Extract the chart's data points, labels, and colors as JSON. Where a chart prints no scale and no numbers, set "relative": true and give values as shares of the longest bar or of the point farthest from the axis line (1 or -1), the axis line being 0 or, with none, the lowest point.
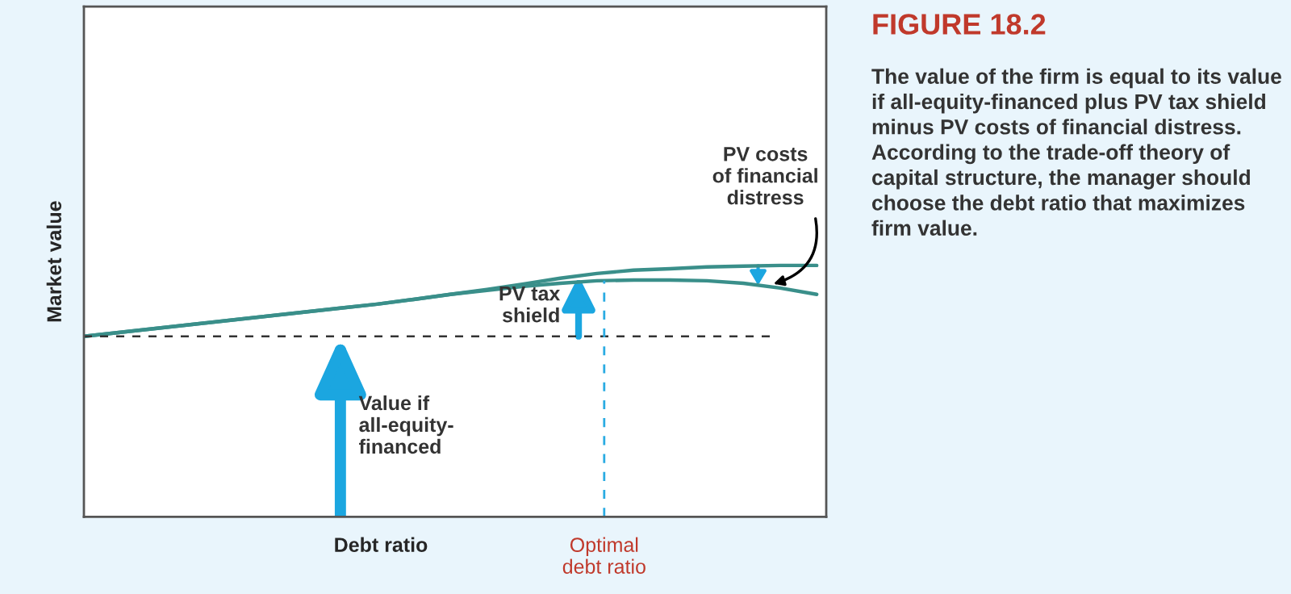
{
  "chart_data": {
    "type": "line",
    "relative": true,
    "title": "FIGURE 18.2",
    "xlabel": "Debt ratio",
    "ylabel": "Market value",
    "legend": false,
    "marker": "none",
    "categories": [
      null,
      null,
      null,
      null,
      null,
      null,
      null,
      null,
      null,
      null,
      null,
      null,
      null,
      null,
      null,
      null,
      null,
      null,
      null,
      null,
      null
    ],
    "series": [
      {
        "color": "#3a8f8a",
        "line_style": "solid",
        "values": [
          0.718,
          0.734,
          0.75,
          0.766,
          0.782,
          0.798,
          0.814,
          0.83,
          0.846,
          0.865,
          0.885,
          0.904,
          0.926,
          0.949,
          0.968,
          0.981,
          0.987,
          0.994,
          0.997,
          1.0,
          1.0
        ]
      },
      {
        "color": "#3a8f8a",
        "line_style": "solid",
        "values": [
          0.718,
          0.734,
          0.75,
          0.766,
          0.782,
          0.798,
          0.814,
          0.83,
          0.846,
          0.865,
          0.885,
          0.901,
          0.917,
          0.929,
          0.939,
          0.942,
          0.942,
          0.939,
          0.929,
          0.91,
          0.885
        ]
      }
    ],
    "ref_lines": [
      {
        "axis": "y",
        "value": 0.718,
        "color": "#333333",
        "line_style": "dashed"
      }
    ],
    "annotations": [
      "Value if\nall-equity-\nfinanced",
      "PV tax\nshield",
      "PV costs\nof financial\ndistress",
      "Optimal\ndebt ratio",
      "The value of the firm is equal to its value if all-equity-financed plus PV tax shield minus PV costs of financial distress. According to the trade-off theory of capital structure, the manager should choose the debt ratio that maximizes firm value."
    ]
  }
}
